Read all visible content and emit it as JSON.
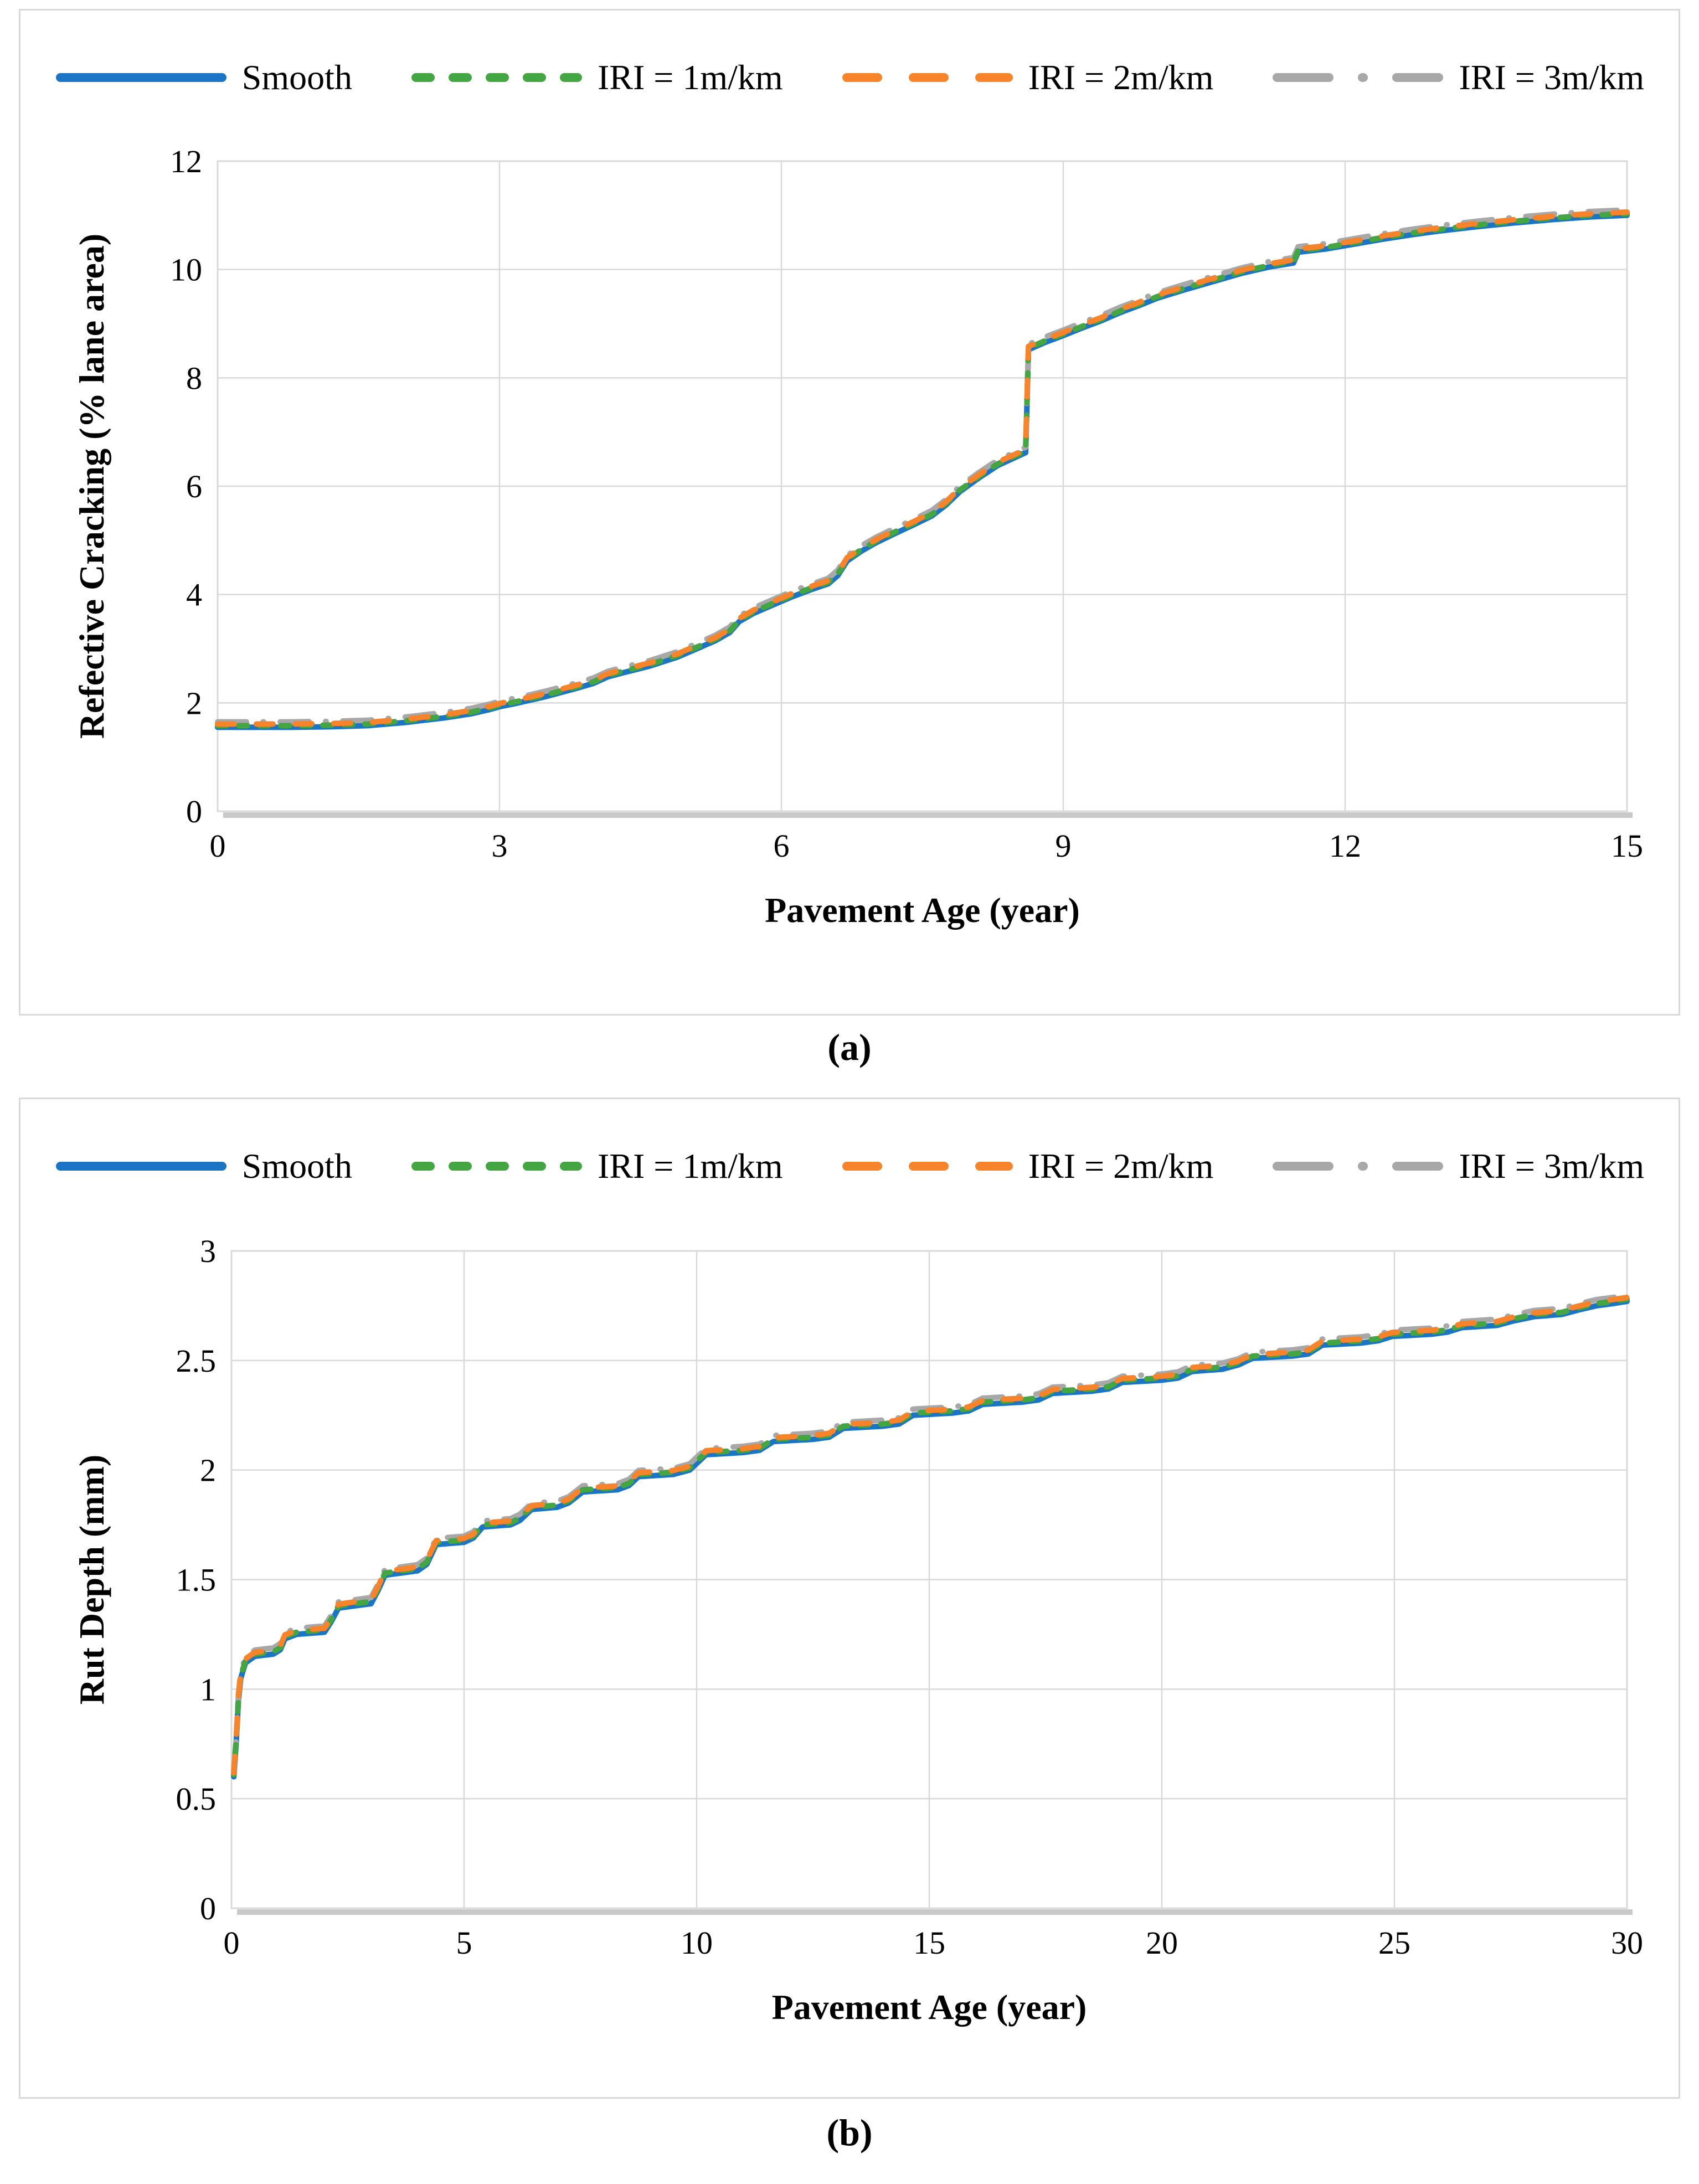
{
  "figure": {
    "panel_a_label": "(a)",
    "panel_b_label": "(b)"
  },
  "legend": {
    "items": [
      {
        "name": "Smooth",
        "label": "Smooth",
        "color": "#1C74C4",
        "style": "solid"
      },
      {
        "name": "IRI = 1m/km",
        "label": "IRI = 1m/km",
        "color": "#43A643",
        "style": "dashed-short"
      },
      {
        "name": "IRI = 2m/km",
        "label": "IRI = 2m/km",
        "color": "#F7832A",
        "style": "dashed-long"
      },
      {
        "name": "IRI = 3m/km",
        "label": "IRI = 3m/km",
        "color": "#A8A8A8",
        "style": "dash-dot"
      }
    ]
  },
  "chart_data": [
    {
      "id": "a",
      "type": "line",
      "title": "",
      "xlabel": "Pavement Age (year)",
      "ylabel": "Refective Cracking (% lane area)",
      "xlim": [
        0,
        15
      ],
      "ylim": [
        0,
        12
      ],
      "xticks": [
        0,
        3,
        6,
        9,
        12,
        15
      ],
      "yticks": [
        0,
        2,
        4,
        6,
        8,
        10,
        12
      ],
      "grid": true,
      "legend_position": "top",
      "series_note": "Four nearly overlapping curves; each series equals base_points shifted up by its offset (% lane area).",
      "series": [
        {
          "name": "Smooth",
          "offset": 0.0
        },
        {
          "name": "IRI = 1m/km",
          "offset": 0.03
        },
        {
          "name": "IRI = 2m/km",
          "offset": 0.06
        },
        {
          "name": "IRI = 3m/km",
          "offset": 0.1
        }
      ],
      "base_points": [
        [
          0,
          1.55
        ],
        [
          0.4,
          1.55
        ],
        [
          0.8,
          1.55
        ],
        [
          1.2,
          1.56
        ],
        [
          1.6,
          1.58
        ],
        [
          2.0,
          1.64
        ],
        [
          2.4,
          1.72
        ],
        [
          2.7,
          1.8
        ],
        [
          2.9,
          1.88
        ],
        [
          3.0,
          1.93
        ],
        [
          3.2,
          2.0
        ],
        [
          3.5,
          2.12
        ],
        [
          3.8,
          2.26
        ],
        [
          4.0,
          2.36
        ],
        [
          4.15,
          2.48
        ],
        [
          4.3,
          2.55
        ],
        [
          4.6,
          2.68
        ],
        [
          4.9,
          2.85
        ],
        [
          5.1,
          3.0
        ],
        [
          5.3,
          3.15
        ],
        [
          5.45,
          3.3
        ],
        [
          5.55,
          3.5
        ],
        [
          5.7,
          3.65
        ],
        [
          5.9,
          3.8
        ],
        [
          6.1,
          3.95
        ],
        [
          6.3,
          4.08
        ],
        [
          6.5,
          4.2
        ],
        [
          6.6,
          4.35
        ],
        [
          6.7,
          4.62
        ],
        [
          6.85,
          4.8
        ],
        [
          7.0,
          4.95
        ],
        [
          7.2,
          5.12
        ],
        [
          7.4,
          5.28
        ],
        [
          7.6,
          5.45
        ],
        [
          7.75,
          5.65
        ],
        [
          7.9,
          5.9
        ],
        [
          8.1,
          6.15
        ],
        [
          8.3,
          6.38
        ],
        [
          8.45,
          6.5
        ],
        [
          8.6,
          6.62
        ],
        [
          8.63,
          8.52
        ],
        [
          8.8,
          8.65
        ],
        [
          9.0,
          8.78
        ],
        [
          9.2,
          8.92
        ],
        [
          9.4,
          9.05
        ],
        [
          9.6,
          9.2
        ],
        [
          9.8,
          9.33
        ],
        [
          10.0,
          9.47
        ],
        [
          10.3,
          9.63
        ],
        [
          10.6,
          9.78
        ],
        [
          10.9,
          9.93
        ],
        [
          11.2,
          10.05
        ],
        [
          11.45,
          10.12
        ],
        [
          11.5,
          10.32
        ],
        [
          11.8,
          10.38
        ],
        [
          12.1,
          10.47
        ],
        [
          12.4,
          10.56
        ],
        [
          12.7,
          10.64
        ],
        [
          13.0,
          10.71
        ],
        [
          13.4,
          10.79
        ],
        [
          13.8,
          10.86
        ],
        [
          14.2,
          10.92
        ],
        [
          14.6,
          10.97
        ],
        [
          15.0,
          11.0
        ]
      ]
    },
    {
      "id": "b",
      "type": "line",
      "title": "",
      "xlabel": "Pavement Age (year)",
      "ylabel": "Rut Depth (mm)",
      "xlim": [
        0,
        30
      ],
      "ylim": [
        0,
        3
      ],
      "xticks": [
        0,
        5,
        10,
        15,
        20,
        25,
        30
      ],
      "yticks": [
        0,
        0.5,
        1,
        1.5,
        2,
        2.5,
        3
      ],
      "grid": true,
      "legend_position": "top",
      "series_note": "Four nearly overlapping staircase curves; each series equals base_points shifted up by its offset (mm).",
      "series": [
        {
          "name": "Smooth",
          "offset": 0.0
        },
        {
          "name": "IRI = 1m/km",
          "offset": 0.01
        },
        {
          "name": "IRI = 2m/km",
          "offset": 0.018
        },
        {
          "name": "IRI = 3m/km",
          "offset": 0.028
        }
      ],
      "base_points": [
        [
          0.05,
          0.6
        ],
        [
          0.1,
          0.75
        ],
        [
          0.15,
          0.95
        ],
        [
          0.2,
          1.05
        ],
        [
          0.3,
          1.12
        ],
        [
          0.5,
          1.15
        ],
        [
          0.9,
          1.16
        ],
        [
          1.05,
          1.18
        ],
        [
          1.15,
          1.23
        ],
        [
          1.4,
          1.25
        ],
        [
          2.0,
          1.26
        ],
        [
          2.15,
          1.31
        ],
        [
          2.3,
          1.37
        ],
        [
          3.0,
          1.39
        ],
        [
          3.15,
          1.45
        ],
        [
          3.3,
          1.52
        ],
        [
          4.0,
          1.54
        ],
        [
          4.2,
          1.57
        ],
        [
          4.4,
          1.66
        ],
        [
          5.0,
          1.67
        ],
        [
          5.2,
          1.69
        ],
        [
          5.4,
          1.74
        ],
        [
          6.0,
          1.75
        ],
        [
          6.2,
          1.77
        ],
        [
          6.45,
          1.82
        ],
        [
          7.0,
          1.83
        ],
        [
          7.25,
          1.85
        ],
        [
          7.55,
          1.9
        ],
        [
          8.3,
          1.91
        ],
        [
          8.55,
          1.93
        ],
        [
          8.75,
          1.97
        ],
        [
          9.5,
          1.98
        ],
        [
          9.85,
          2.0
        ],
        [
          10.2,
          2.07
        ],
        [
          11.0,
          2.08
        ],
        [
          11.35,
          2.09
        ],
        [
          11.65,
          2.13
        ],
        [
          12.5,
          2.14
        ],
        [
          12.85,
          2.15
        ],
        [
          13.15,
          2.19
        ],
        [
          14.0,
          2.2
        ],
        [
          14.35,
          2.21
        ],
        [
          14.65,
          2.25
        ],
        [
          15.5,
          2.26
        ],
        [
          15.85,
          2.27
        ],
        [
          16.15,
          2.3
        ],
        [
          17.0,
          2.31
        ],
        [
          17.35,
          2.32
        ],
        [
          17.65,
          2.35
        ],
        [
          18.5,
          2.36
        ],
        [
          18.85,
          2.37
        ],
        [
          19.15,
          2.4
        ],
        [
          20.0,
          2.41
        ],
        [
          20.35,
          2.42
        ],
        [
          20.65,
          2.45
        ],
        [
          21.3,
          2.46
        ],
        [
          21.65,
          2.48
        ],
        [
          21.95,
          2.51
        ],
        [
          22.8,
          2.52
        ],
        [
          23.15,
          2.53
        ],
        [
          23.45,
          2.57
        ],
        [
          24.3,
          2.58
        ],
        [
          24.65,
          2.59
        ],
        [
          24.95,
          2.61
        ],
        [
          25.8,
          2.62
        ],
        [
          26.15,
          2.63
        ],
        [
          26.45,
          2.65
        ],
        [
          27.2,
          2.66
        ],
        [
          27.55,
          2.68
        ],
        [
          28.0,
          2.7
        ],
        [
          28.6,
          2.71
        ],
        [
          28.95,
          2.73
        ],
        [
          29.35,
          2.75
        ],
        [
          29.7,
          2.76
        ],
        [
          30,
          2.77
        ]
      ]
    }
  ],
  "style": {
    "grid_color": "#D9D9D9",
    "plot_border_color": "#D9D9D9",
    "plot_shadow_color": "#C9C9C9",
    "text_color": "#000000"
  }
}
